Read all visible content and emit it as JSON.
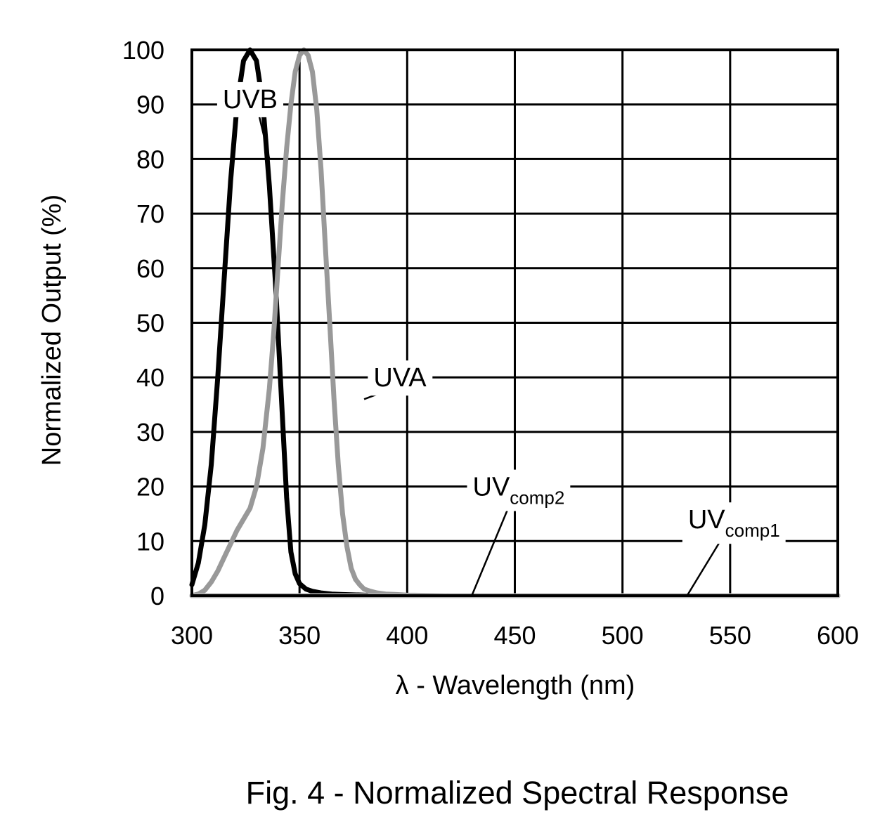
{
  "chart_data": {
    "type": "line",
    "title": "Fig. 4 - Normalized Spectral Response",
    "xlabel": "λ - Wavelength (nm)",
    "ylabel": "Normalized Output (%)",
    "xlim": [
      300,
      600
    ],
    "ylim": [
      0,
      100
    ],
    "xticks": [
      "300",
      "350",
      "400",
      "450",
      "500",
      "550",
      "600"
    ],
    "yticks": [
      "0",
      "10",
      "20",
      "30",
      "40",
      "50",
      "60",
      "70",
      "80",
      "90",
      "100"
    ],
    "grid": true,
    "series": [
      {
        "name": "UVB",
        "label_base": "UVB",
        "label_sub": "",
        "color": "#000000",
        "x": [
          300,
          303,
          306,
          309,
          312,
          315,
          318,
          321,
          324,
          327,
          330,
          333,
          336,
          339,
          342,
          344,
          346,
          348,
          350,
          353,
          356,
          360,
          365,
          370,
          380,
          400,
          450,
          500,
          550,
          600
        ],
        "y": [
          2,
          6,
          13,
          24,
          40,
          58,
          76,
          90,
          98,
          100,
          98,
          90,
          75,
          56,
          33,
          18,
          8,
          4,
          2.2,
          1.2,
          0.8,
          0.5,
          0.3,
          0.2,
          0.1,
          0,
          0,
          0,
          0,
          0
        ]
      },
      {
        "name": "UVA",
        "label_base": "UVA",
        "label_sub": "",
        "color": "#999999",
        "x": [
          300,
          303,
          306,
          309,
          312,
          315,
          318,
          321,
          324,
          327,
          330,
          333,
          336,
          338,
          340,
          342,
          344,
          346,
          348,
          350,
          352,
          354,
          356,
          358,
          360,
          362,
          364,
          366,
          368,
          370,
          372,
          374,
          376,
          378,
          380,
          383,
          386,
          390,
          395,
          400,
          410,
          420,
          450,
          500,
          550,
          600
        ],
        "y": [
          0,
          0.3,
          1,
          2.5,
          4.5,
          7,
          9.5,
          12,
          14,
          16,
          20,
          27,
          38,
          48,
          60,
          72,
          82,
          90,
          96,
          99,
          100,
          99,
          96,
          89,
          78,
          64,
          50,
          36,
          24,
          15,
          9,
          5,
          3,
          2,
          1.2,
          0.8,
          0.5,
          0.3,
          0.2,
          0.1,
          0.05,
          0,
          0,
          0,
          0,
          0
        ]
      },
      {
        "name": "UVcomp2",
        "label_base": "UV",
        "label_sub": "comp2",
        "color": "#b3b3b3",
        "x": [
          300,
          400,
          450,
          500,
          550,
          600
        ],
        "y": [
          0,
          0,
          0,
          0,
          0,
          0
        ]
      },
      {
        "name": "UVcomp1",
        "label_base": "UV",
        "label_sub": "comp1",
        "color": "#b3b3b3",
        "x": [
          300,
          400,
          450,
          500,
          550,
          600
        ],
        "y": [
          0,
          0,
          0,
          0,
          0,
          0
        ]
      }
    ],
    "annotations": [
      {
        "series": "UVB",
        "text_x": 330,
        "text_y": 91,
        "point_x": 336,
        "point_y": 80
      },
      {
        "series": "UVA",
        "text_x": 400,
        "text_y": 40,
        "point_x": 380,
        "point_y": 36
      },
      {
        "series": "UVcomp2",
        "text_x": 450,
        "text_y": 20,
        "point_x": 430,
        "point_y": 0
      },
      {
        "series": "UVcomp1",
        "text_x": 550,
        "text_y": 14,
        "point_x": 530,
        "point_y": 0
      }
    ]
  }
}
